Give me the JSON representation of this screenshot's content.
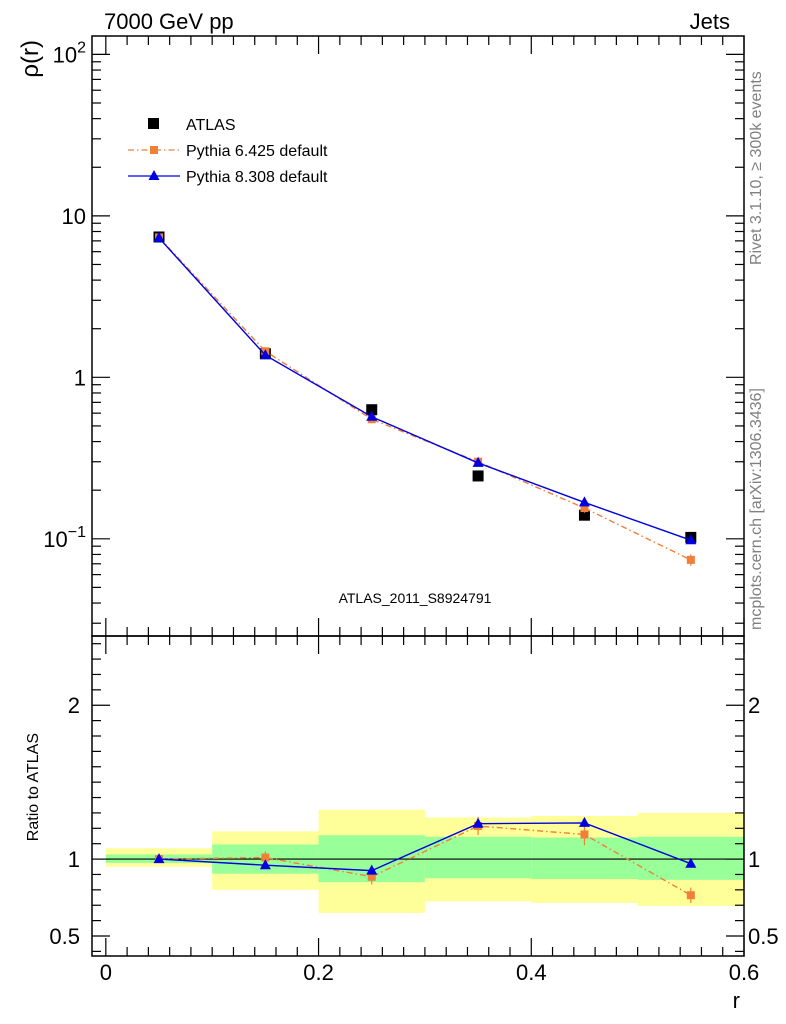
{
  "header": {
    "left": "7000 GeV pp",
    "right": "Jets"
  },
  "side_labels": {
    "rivet": "Rivet 3.1.10, ≥ 300k events",
    "mcplots": "mcplots.cern.ch [arXiv:1306.3436]"
  },
  "analysis_id": "ATLAS_2011_S8924791",
  "chart_data": [
    {
      "type": "line",
      "panel": "main",
      "ylabel": "ρ(r)",
      "xlabel": "r",
      "yscale": "log",
      "ylim": [
        0.025,
        130
      ],
      "xlim": [
        -0.013,
        0.6
      ],
      "y_tick_labels": [
        {
          "value": 100,
          "base": "10",
          "exp": "2"
        },
        {
          "value": 10,
          "base": "10",
          "exp": ""
        },
        {
          "value": 1,
          "base": "1",
          "exp": ""
        },
        {
          "value": 0.1,
          "base": "10",
          "exp": "−1"
        }
      ],
      "legend_position": "top-left",
      "legend": [
        {
          "label": "ATLAS",
          "series": 0
        },
        {
          "label": "Pythia 6.425 default",
          "series": 1
        },
        {
          "label": "Pythia 8.308 default",
          "series": 2
        }
      ],
      "x": [
        0.05,
        0.15,
        0.25,
        0.35,
        0.45,
        0.55
      ],
      "series": [
        {
          "name": "ATLAS",
          "values": [
            7.4,
            1.4,
            0.63,
            0.245,
            0.14,
            0.102
          ],
          "color": "#000000",
          "marker": "square"
        },
        {
          "name": "Pythia 6.425 default",
          "values": [
            7.35,
            1.45,
            0.55,
            0.3,
            0.155,
            0.074
          ],
          "errors": [
            0.1,
            0.04,
            0.03,
            0.02,
            0.01,
            0.006
          ],
          "color": "#f07f3a",
          "marker": "square",
          "linestyle": "dash-dot"
        },
        {
          "name": "Pythia 8.308 default",
          "values": [
            7.3,
            1.37,
            0.57,
            0.295,
            0.168,
            0.098
          ],
          "color": "#0000e0",
          "marker": "triangle",
          "linestyle": "solid"
        }
      ]
    },
    {
      "type": "line",
      "panel": "ratio",
      "ylabel": "Ratio to ATLAS",
      "xlabel": "r",
      "ylim": [
        0.37,
        2.45
      ],
      "xlim": [
        -0.013,
        0.6
      ],
      "y_ticks": [
        0.5,
        1,
        2
      ],
      "y_tick_labels": [
        "0.5",
        "1",
        "2"
      ],
      "x_ticks": [
        0,
        0.2,
        0.4,
        0.6
      ],
      "x_tick_labels": [
        "0",
        "0.2",
        "0.4",
        "0.6"
      ],
      "bins": [
        [
          0,
          0.1
        ],
        [
          0.1,
          0.2
        ],
        [
          0.2,
          0.3
        ],
        [
          0.3,
          0.4
        ],
        [
          0.4,
          0.5
        ],
        [
          0.5,
          0.6
        ]
      ],
      "bands": {
        "inner": {
          "color": "#99ff99",
          "low": [
            0.975,
            0.905,
            0.85,
            0.875,
            0.87,
            0.865
          ],
          "high": [
            1.03,
            1.095,
            1.155,
            1.145,
            1.14,
            1.145
          ]
        },
        "outer": {
          "color": "#ffff99",
          "low": [
            0.95,
            0.8,
            0.65,
            0.725,
            0.715,
            0.695
          ],
          "high": [
            1.07,
            1.18,
            1.32,
            1.27,
            1.28,
            1.3
          ]
        }
      },
      "x": [
        0.05,
        0.15,
        0.25,
        0.35,
        0.45,
        0.55
      ],
      "series": [
        {
          "name": "Pythia 6.425 default",
          "values": [
            1.0,
            1.01,
            0.885,
            1.215,
            1.16,
            0.765
          ],
          "errors": [
            0.01,
            0.04,
            0.05,
            0.06,
            0.07,
            0.05
          ],
          "color": "#f07f3a",
          "marker": "square",
          "linestyle": "dash-dot"
        },
        {
          "name": "Pythia 8.308 default",
          "values": [
            1.0,
            0.96,
            0.925,
            1.23,
            1.235,
            0.97
          ],
          "errors": [
            0.005,
            0.01,
            0.01,
            0.02,
            0.02,
            0.01
          ],
          "color": "#0000e0",
          "marker": "triangle",
          "linestyle": "solid"
        }
      ]
    }
  ]
}
